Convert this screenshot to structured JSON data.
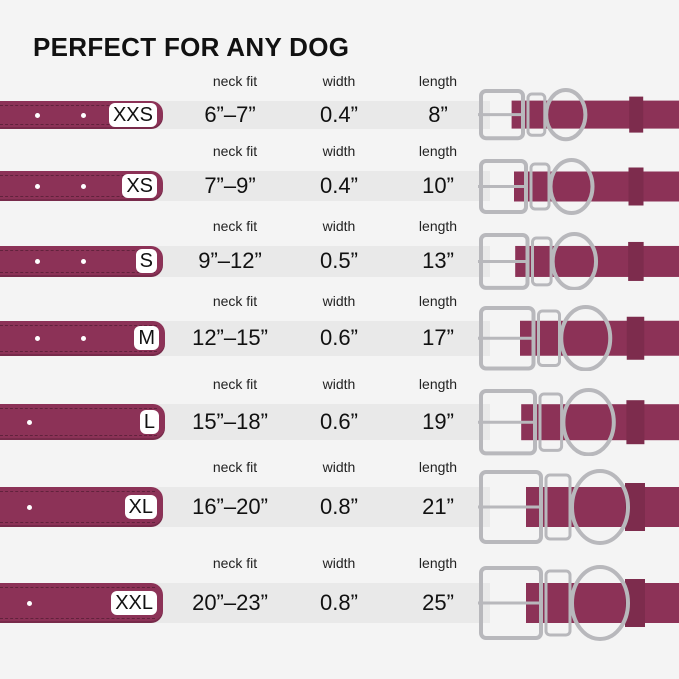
{
  "title": "PERFECT FOR ANY DOG",
  "labels": {
    "neck": "neck fit",
    "width": "width",
    "length": "length"
  },
  "colors": {
    "strap": "#8c3257",
    "band": "#e9e9e9",
    "metal": "#b8b8bc"
  },
  "sizes": [
    {
      "size": "XXS",
      "neck_fit": "6”–7”",
      "width": "0.4”",
      "length": "8”"
    },
    {
      "size": "XS",
      "neck_fit": "7”–9”",
      "width": "0.4”",
      "length": "10”"
    },
    {
      "size": "S",
      "neck_fit": "9”–12”",
      "width": "0.5”",
      "length": "13”"
    },
    {
      "size": "M",
      "neck_fit": "12”–15”",
      "width": "0.6”",
      "length": "17”"
    },
    {
      "size": "L",
      "neck_fit": "15”–18”",
      "width": "0.6”",
      "length": "19”"
    },
    {
      "size": "XL",
      "neck_fit": "16”–20”",
      "width": "0.8”",
      "length": "21”"
    },
    {
      "size": "XXL",
      "neck_fit": "20”–23”",
      "width": "0.8”",
      "length": "25”"
    }
  ]
}
